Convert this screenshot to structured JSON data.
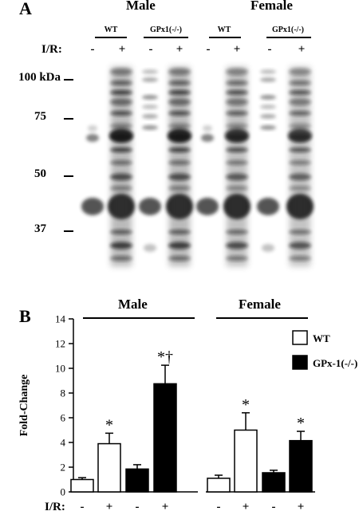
{
  "panelA": {
    "letter": "A",
    "sexes": [
      "Male",
      "Female"
    ],
    "groups": [
      "WT",
      "GPx1(-/-)",
      "WT",
      "GPx1(-/-)"
    ],
    "ir_label": "I/R:",
    "ir_signs": [
      "-",
      "+",
      "-",
      "+",
      "-",
      "+",
      "-",
      "+"
    ],
    "mw_markers": [
      "100 kDa",
      "75",
      "50",
      "37"
    ]
  },
  "panelB": {
    "letter": "B",
    "sexes": [
      "Male",
      "Female"
    ]
  },
  "chart_data": {
    "type": "bar",
    "title": "",
    "xlabel": "",
    "ylabel": "Fold-Change",
    "ylim": [
      0,
      14
    ],
    "yticks": [
      0,
      2,
      4,
      6,
      8,
      10,
      12,
      14
    ],
    "grid": false,
    "legend_position": "top-right",
    "ir_label": "I/R:",
    "categories": [
      "-",
      "+",
      "-",
      "+",
      "-",
      "+",
      "-",
      "+"
    ],
    "groups": [
      "Male",
      "Female"
    ],
    "series": [
      {
        "name": "WT",
        "color": "#ffffff"
      },
      {
        "name": "GPx-1(-/-)",
        "color": "#000000"
      }
    ],
    "bars": [
      {
        "group": "Male",
        "series": "WT",
        "ir": "-",
        "value": 1.0,
        "error": 0.15,
        "mark": ""
      },
      {
        "group": "Male",
        "series": "WT",
        "ir": "+",
        "value": 3.9,
        "error": 0.85,
        "mark": "*"
      },
      {
        "group": "Male",
        "series": "GPx-1(-/-)",
        "ir": "-",
        "value": 1.85,
        "error": 0.35,
        "mark": ""
      },
      {
        "group": "Male",
        "series": "GPx-1(-/-)",
        "ir": "+",
        "value": 8.75,
        "error": 1.5,
        "mark": "*†"
      },
      {
        "group": "Female",
        "series": "WT",
        "ir": "-",
        "value": 1.1,
        "error": 0.25,
        "mark": ""
      },
      {
        "group": "Female",
        "series": "WT",
        "ir": "+",
        "value": 5.0,
        "error": 1.4,
        "mark": "*"
      },
      {
        "group": "Female",
        "series": "GPx-1(-/-)",
        "ir": "-",
        "value": 1.55,
        "error": 0.2,
        "mark": ""
      },
      {
        "group": "Female",
        "series": "GPx-1(-/-)",
        "ir": "+",
        "value": 4.15,
        "error": 0.75,
        "mark": "*"
      }
    ]
  }
}
